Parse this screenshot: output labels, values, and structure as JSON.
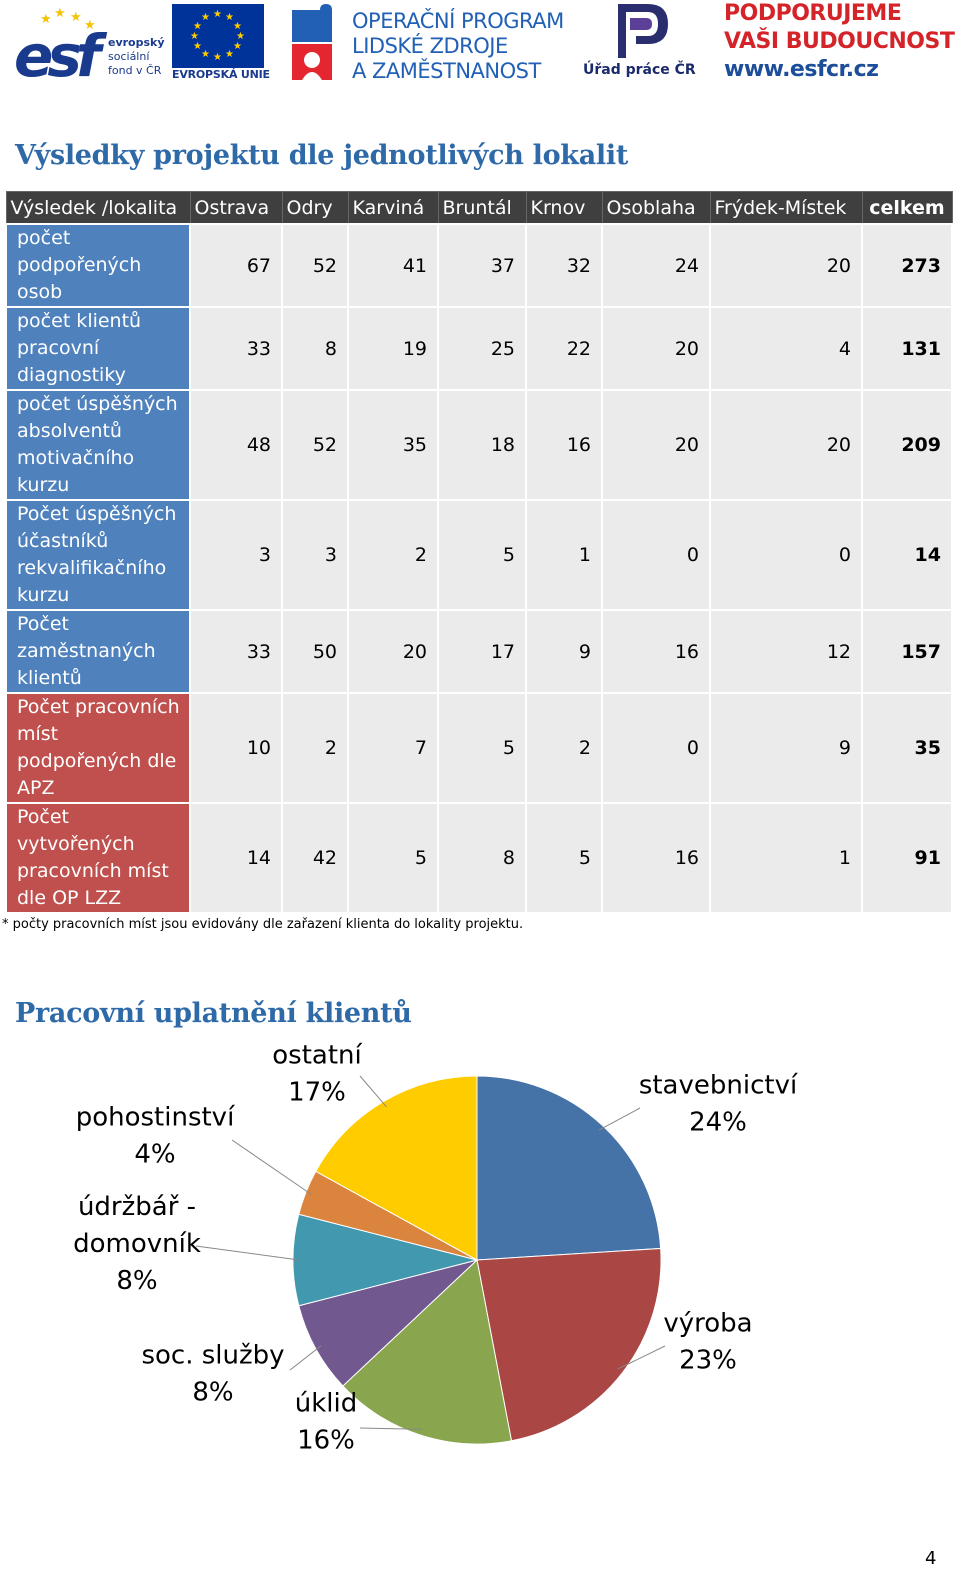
{
  "header": {
    "esf_lines": [
      "evropský",
      "sociální",
      "fond v ČR"
    ],
    "eu_caption": "EVROPSKÁ UNIE",
    "op_lines": [
      "OPERAČNÍ PROGRAM",
      "LIDSKÉ ZDROJE",
      "A ZAMĚSTNANOST"
    ],
    "up_caption": "Úřad práce ČR",
    "slogan_lines": [
      "PODPORUJEME",
      "VAŠI BUDOUCNOST"
    ],
    "slogan_url": "www.esfcr.cz"
  },
  "results_heading": "Výsledky projektu dle jednotlivých lokalit",
  "table": {
    "columns": [
      "Výsledek /lokalita",
      "Ostrava",
      "Odry",
      "Karviná",
      "Bruntál",
      "Krnov",
      "Osoblaha",
      "Frýdek-Místek",
      "celkem"
    ],
    "rows": [
      {
        "label": "počet podpořených osob",
        "color": "#4f81bd",
        "values": [
          "67",
          "52",
          "41",
          "37",
          "32",
          "24",
          "20"
        ],
        "total": "273"
      },
      {
        "label": "počet klientů pracovní diagnostiky",
        "color": "#4f81bd",
        "values": [
          "33",
          "8",
          "19",
          "25",
          "22",
          "20",
          "4"
        ],
        "total": "131"
      },
      {
        "label": "počet úspěšných absolventů motivačního kurzu",
        "color": "#4f81bd",
        "values": [
          "48",
          "52",
          "35",
          "18",
          "16",
          "20",
          "20"
        ],
        "total": "209"
      },
      {
        "label": "Počet úspěšných účastníků rekvalifikačního kurzu",
        "color": "#4f81bd",
        "values": [
          "3",
          "3",
          "2",
          "5",
          "1",
          "0",
          "0"
        ],
        "total": "14"
      },
      {
        "label": "Počet zaměstnaných klientů",
        "color": "#4f81bd",
        "values": [
          "33",
          "50",
          "20",
          "17",
          "9",
          "16",
          "12"
        ],
        "total": "157"
      },
      {
        "label": "Počet pracovních míst podpořených dle APZ",
        "color": "#c0504d",
        "values": [
          "10",
          "2",
          "7",
          "5",
          "2",
          "0",
          "9"
        ],
        "total": "35"
      },
      {
        "label": "Počet vytvořených pracovních míst dle OP LZZ",
        "color": "#c0504d",
        "values": [
          "14",
          "42",
          "5",
          "8",
          "5",
          "16",
          "1"
        ],
        "total": "91"
      }
    ],
    "footnote": "* počty pracovních míst jsou evidovány dle zařazení klienta do lokality projektu."
  },
  "employment_heading": "Pracovní uplatnění klientů",
  "chart_data": {
    "type": "pie",
    "title": "",
    "slices": [
      {
        "name": "stavebnictví",
        "value": 24,
        "label": "24%",
        "color": "#4572a7"
      },
      {
        "name": "výroba",
        "value": 23,
        "label": "23%",
        "color": "#aa4643"
      },
      {
        "name": "úklid",
        "value": 16,
        "label": "16%",
        "color": "#89a54e"
      },
      {
        "name": "soc. služby",
        "value": 8,
        "label": "8%",
        "color": "#71588f"
      },
      {
        "name": "údržbář - domovník",
        "value": 8,
        "label": "8%",
        "color": "#4198af"
      },
      {
        "name": "pohostinství",
        "value": 4,
        "label": "4%",
        "color": "#db843d"
      },
      {
        "name": "ostatní",
        "value": 17,
        "label": "17%",
        "color": "#ffcc00"
      }
    ]
  },
  "page_number": "4"
}
